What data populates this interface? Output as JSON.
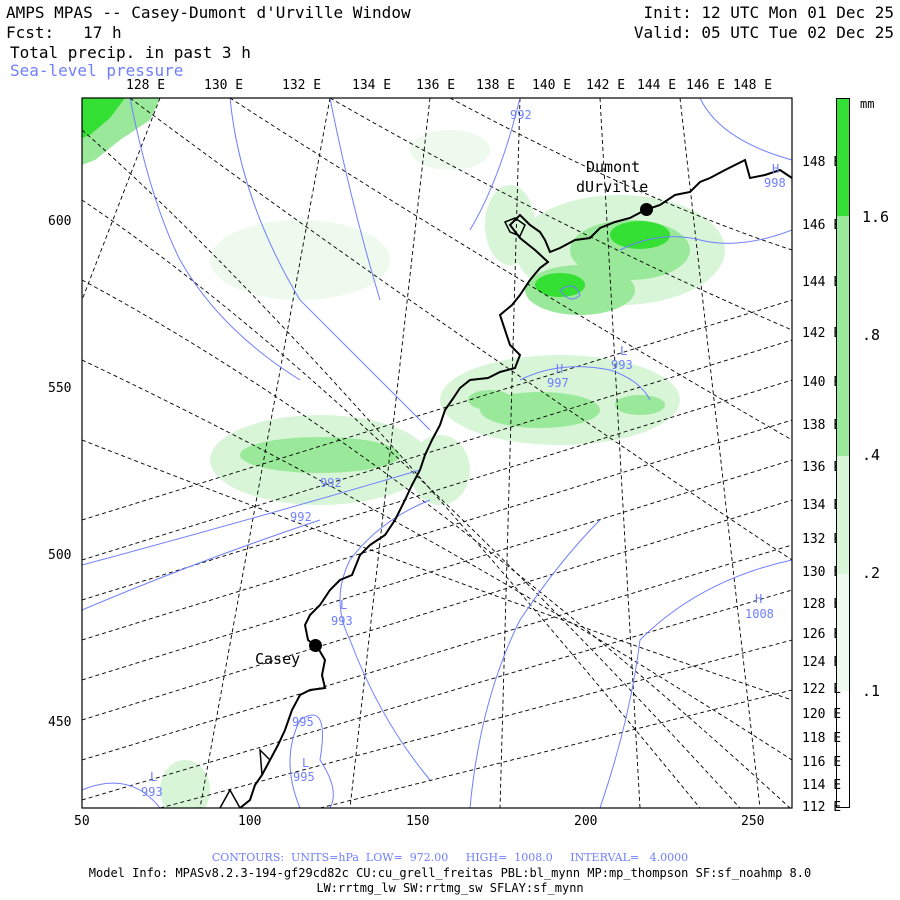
{
  "header": {
    "title": "AMPS MPAS -- Casey-Dumont d'Urville Window",
    "forecast": "Fcst:   17 h",
    "field": "Total precip. in past 3 h",
    "overlay": "Sea-level pressure",
    "init": "Init: 12 UTC Mon 01 Dec 25",
    "valid": "Valid: 05 UTC Tue 02 Dec 25"
  },
  "map": {
    "top_lon_labels": [
      "128 E",
      "130 E",
      "132 E",
      "134 E",
      "136 E",
      "138 E",
      "140 E",
      "142 E",
      "144 E",
      "146 E",
      "148 E"
    ],
    "right_lon_labels": [
      "148 E",
      "146 E",
      "144 E",
      "142 E",
      "140 E",
      "138 E",
      "136 E",
      "134 E",
      "132 E",
      "130 E",
      "128 E",
      "126 E",
      "124 E",
      "122 E",
      "120 E",
      "118 E",
      "116 E",
      "114 E",
      "112 E"
    ],
    "x_ticks": [
      "50",
      "100",
      "150",
      "200",
      "250"
    ],
    "y_ticks": [
      "600",
      "550",
      "500",
      "450"
    ],
    "stations": [
      {
        "name": "Casey"
      },
      {
        "name": "Dumont",
        "name2": "dUrville"
      }
    ],
    "pressure_labels": [
      {
        "text": "992"
      },
      {
        "text": "992"
      },
      {
        "text": "992"
      },
      {
        "text": "L",
        "sub": "993"
      },
      {
        "text": "H",
        "sub": "997"
      },
      {
        "text": "L",
        "sub": "993"
      },
      {
        "text": "H",
        "sub": "1008"
      },
      {
        "text": "995"
      },
      {
        "text": "L",
        "sub": "995"
      },
      {
        "text": "L",
        "sub": "993"
      },
      {
        "text": "H",
        "sub": "998"
      }
    ],
    "colors": {
      "precip_light": "#d8f5d8",
      "precip_medium": "#9ae89a",
      "precip_heavy": "#33e033",
      "contour": "#6f7fff",
      "coast": "#000000"
    }
  },
  "colorbar": {
    "unit": "mm",
    "labels": [
      "1.6",
      ".8",
      ".4",
      ".2",
      ".1"
    ]
  },
  "footer": {
    "contours": "CONTOURS:  UNITS=hPa  LOW=  972.00     HIGH=  1008.0     INTERVAL=   4.0000",
    "model_info": "Model Info: MPASv8.2.3-194-gf29cd82c CU:cu_grell_freitas PBL:bl_mynn MP:mp_thompson SF:sf_noahmp 8.0",
    "model_info2": "LW:rrtmg_lw SW:rrtmg_sw SFLAY:sf_mynn"
  }
}
